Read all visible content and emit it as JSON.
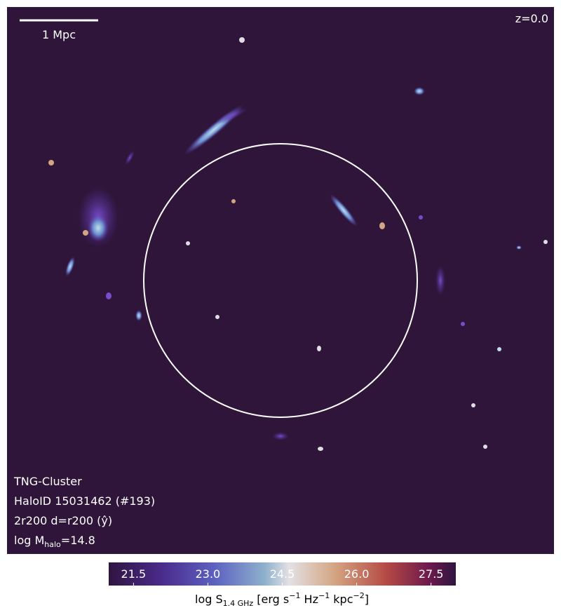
{
  "scale_bar": {
    "label": "1 Mpc"
  },
  "redshift": "z=0.0",
  "info": {
    "simulation": "TNG-Cluster",
    "halo": "HaloID 15031462 (#193)",
    "projection": "2r200 d=r200 (ŷ)",
    "mass": {
      "prefix": "log M",
      "subscript": "halo",
      "suffix": "=14.8"
    }
  },
  "colorbar": {
    "range": [
      21,
      28
    ],
    "ticks": [
      21.5,
      {
        "value": 23,
        "label": "23.0"
      },
      24.5,
      {
        "value": 26,
        "label": "26.0"
      },
      27.5
    ],
    "label": {
      "base": "log S",
      "sub": "1.4 GHz",
      "u1": " [erg s",
      "e1": "−1",
      "u2": " Hz",
      "e2": "−1",
      "u3": " kpc",
      "e3": "−2",
      "end": "]"
    }
  }
}
